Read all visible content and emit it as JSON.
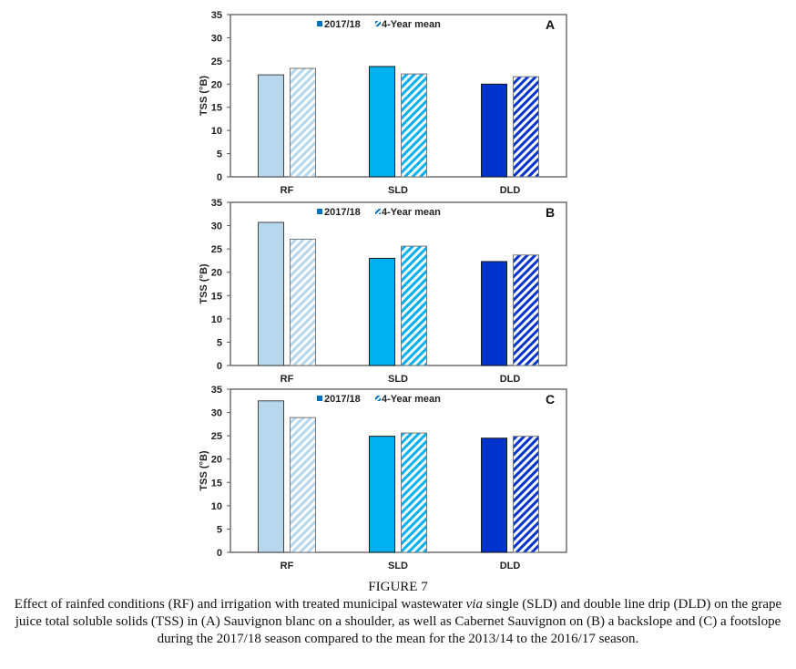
{
  "figure": {
    "title": "FIGURE 7",
    "caption_parts": [
      "Effect of rainfed conditions (RF) and irrigation with treated municipal wastewater ",
      "via",
      " single (SLD) and double line drip (DLD) on the grape juice total soluble solids (TSS) in (A) Sauvignon blanc on a shoulder, as well as Cabernet Sauvignon on (B) a backslope and (C) a footslope during the 2017/18 season compared to the mean for the 2013/14 to the 2016/17 season."
    ]
  },
  "colors": {
    "RF": "#b6d7ee",
    "SLD": "#00b0f0",
    "DLD": "#0033cc",
    "legend_solid": "#0070c0",
    "axis": "#595959"
  },
  "chart_data": [
    {
      "type": "bar",
      "panel_label": "A",
      "categories": [
        "RF",
        "SLD",
        "DLD"
      ],
      "series": [
        {
          "name": "2017/18",
          "style": "solid",
          "values": [
            22.0,
            23.8,
            20.0
          ]
        },
        {
          "name": "4-Year mean",
          "style": "hatched",
          "values": [
            23.4,
            22.2,
            21.6
          ]
        }
      ],
      "ylabel": "TSS (°B)",
      "xlabel": "",
      "ylim": [
        0,
        35
      ],
      "yticks": [
        0,
        5,
        10,
        15,
        20,
        25,
        30,
        35
      ],
      "grid": false,
      "legend": "top-center"
    },
    {
      "type": "bar",
      "panel_label": "B",
      "categories": [
        "RF",
        "SLD",
        "DLD"
      ],
      "series": [
        {
          "name": "2017/18",
          "style": "solid",
          "values": [
            30.7,
            23.0,
            22.3
          ]
        },
        {
          "name": "4-Year mean",
          "style": "hatched",
          "values": [
            27.1,
            25.6,
            23.7
          ]
        }
      ],
      "ylabel": "TSS (°B)",
      "xlabel": "",
      "ylim": [
        0,
        35
      ],
      "yticks": [
        0,
        5,
        10,
        15,
        20,
        25,
        30,
        35
      ],
      "grid": false,
      "legend": "top-center"
    },
    {
      "type": "bar",
      "panel_label": "C",
      "categories": [
        "RF",
        "SLD",
        "DLD"
      ],
      "series": [
        {
          "name": "2017/18",
          "style": "solid",
          "values": [
            32.5,
            24.9,
            24.5
          ]
        },
        {
          "name": "4-Year mean",
          "style": "hatched",
          "values": [
            28.9,
            25.6,
            24.9
          ]
        }
      ],
      "ylabel": "TSS (°B)",
      "xlabel": "",
      "ylim": [
        0,
        35
      ],
      "yticks": [
        0,
        5,
        10,
        15,
        20,
        25,
        30,
        35
      ],
      "grid": false,
      "legend": "top-center"
    }
  ]
}
